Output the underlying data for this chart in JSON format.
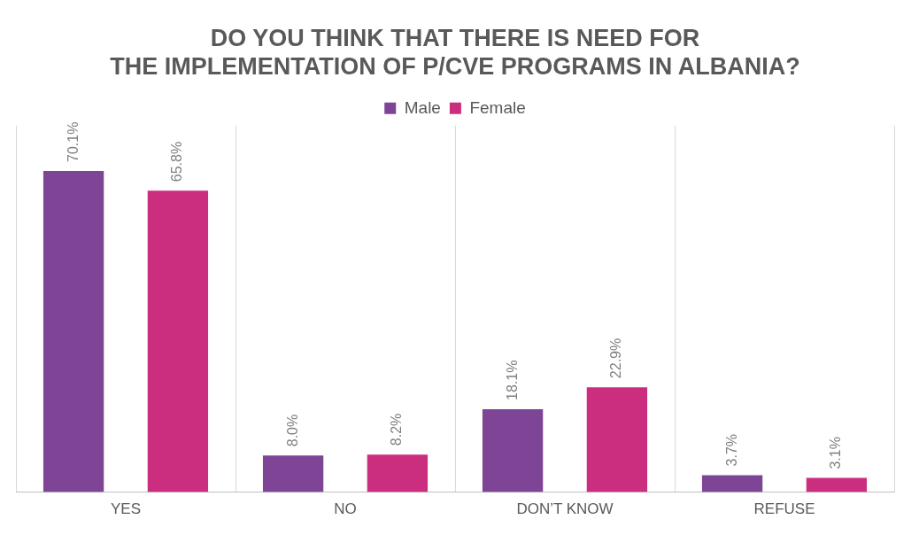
{
  "chart_data": {
    "type": "bar",
    "title": "DO YOU THINK THAT THERE IS NEED FOR THE IMPLEMENTATION OF P/CVE PROGRAMS IN ALBANIA?",
    "categories": [
      "YES",
      "NO",
      "DON’T KNOW",
      "REFUSE"
    ],
    "series": [
      {
        "name": "Male",
        "color": "#7e4597",
        "values": [
          70.1,
          8.0,
          18.1,
          3.7
        ],
        "value_labels": [
          "70.1%",
          "8.0%",
          "18.1%",
          "3.7%"
        ]
      },
      {
        "name": "Female",
        "color": "#cc2e7f",
        "values": [
          65.8,
          8.2,
          22.9,
          3.1
        ],
        "value_labels": [
          "65.8%",
          "8.2%",
          "22.9%",
          "3.1%"
        ]
      }
    ],
    "grid": "x",
    "legend": "top"
  }
}
